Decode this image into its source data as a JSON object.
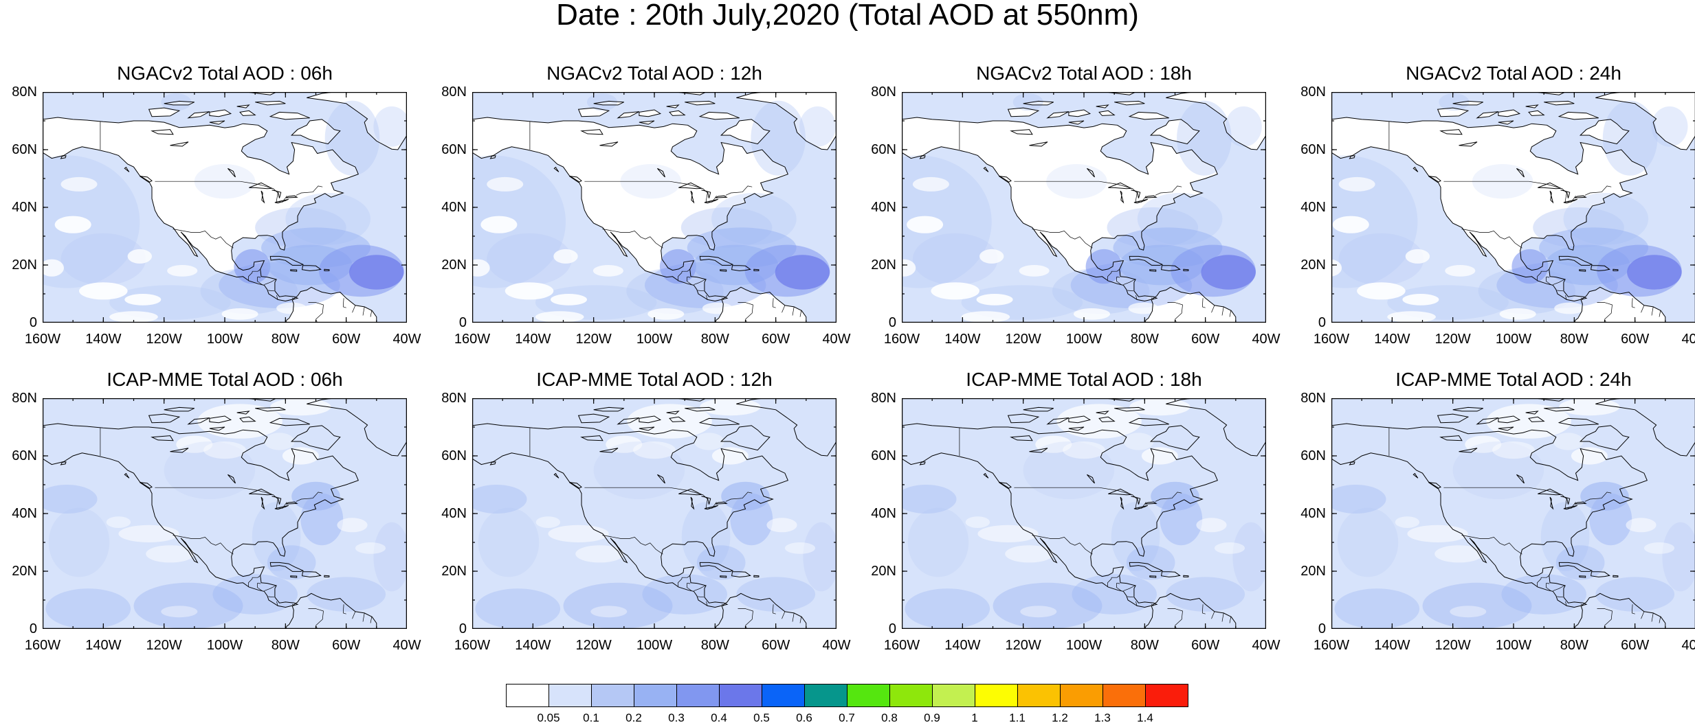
{
  "title": "Date : 20th July,2020 (Total AOD at 550nm)",
  "lat_ticks": [
    "80N",
    "60N",
    "40N",
    "20N",
    "0"
  ],
  "lon_ticks": [
    "160W",
    "140W",
    "120W",
    "100W",
    "80W",
    "60W",
    "40W"
  ],
  "map_extent": {
    "lon_min": -160,
    "lon_max": -40,
    "lat_min": 0,
    "lat_max": 80
  },
  "panels": [
    {
      "title": "NGACv2 Total AOD : 06h",
      "model": "NGACv2",
      "lead": "06h"
    },
    {
      "title": "NGACv2 Total AOD : 12h",
      "model": "NGACv2",
      "lead": "12h"
    },
    {
      "title": "NGACv2 Total AOD : 18h",
      "model": "NGACv2",
      "lead": "18h"
    },
    {
      "title": "NGACv2 Total AOD : 24h",
      "model": "NGACv2",
      "lead": "24h"
    },
    {
      "title": "ICAP-MME Total AOD : 06h",
      "model": "ICAP-MME",
      "lead": "06h"
    },
    {
      "title": "ICAP-MME Total AOD : 12h",
      "model": "ICAP-MME",
      "lead": "12h"
    },
    {
      "title": "ICAP-MME Total AOD : 18h",
      "model": "ICAP-MME",
      "lead": "18h"
    },
    {
      "title": "ICAP-MME Total AOD : 24h",
      "model": "ICAP-MME",
      "lead": "24h"
    }
  ],
  "colorbar": {
    "labels": [
      "0.05",
      "0.1",
      "0.2",
      "0.3",
      "0.4",
      "0.5",
      "0.6",
      "0.7",
      "0.8",
      "0.9",
      "1",
      "1.1",
      "1.2",
      "1.3",
      "1.4"
    ],
    "colors": [
      "#ffffff",
      "#d7e3fb",
      "#b5c8f5",
      "#98b2f3",
      "#8197f0",
      "#6b77ea",
      "#0a64f8",
      "#06968c",
      "#55e60f",
      "#8ee70c",
      "#c3f050",
      "#fdfd02",
      "#fbc202",
      "#fa9d02",
      "#fa6f0a",
      "#fa1d0b"
    ]
  },
  "colors": {
    "ocean_base": "#d7e3fb",
    "land_base": "#ffffff",
    "icap_land": "#d7e3fb",
    "plume_low": "#b5c8f5",
    "plume_mid": "#98b2f3",
    "plume_high": "#8197f0",
    "plume_core": "#6b77ea",
    "coast": "#000000"
  }
}
